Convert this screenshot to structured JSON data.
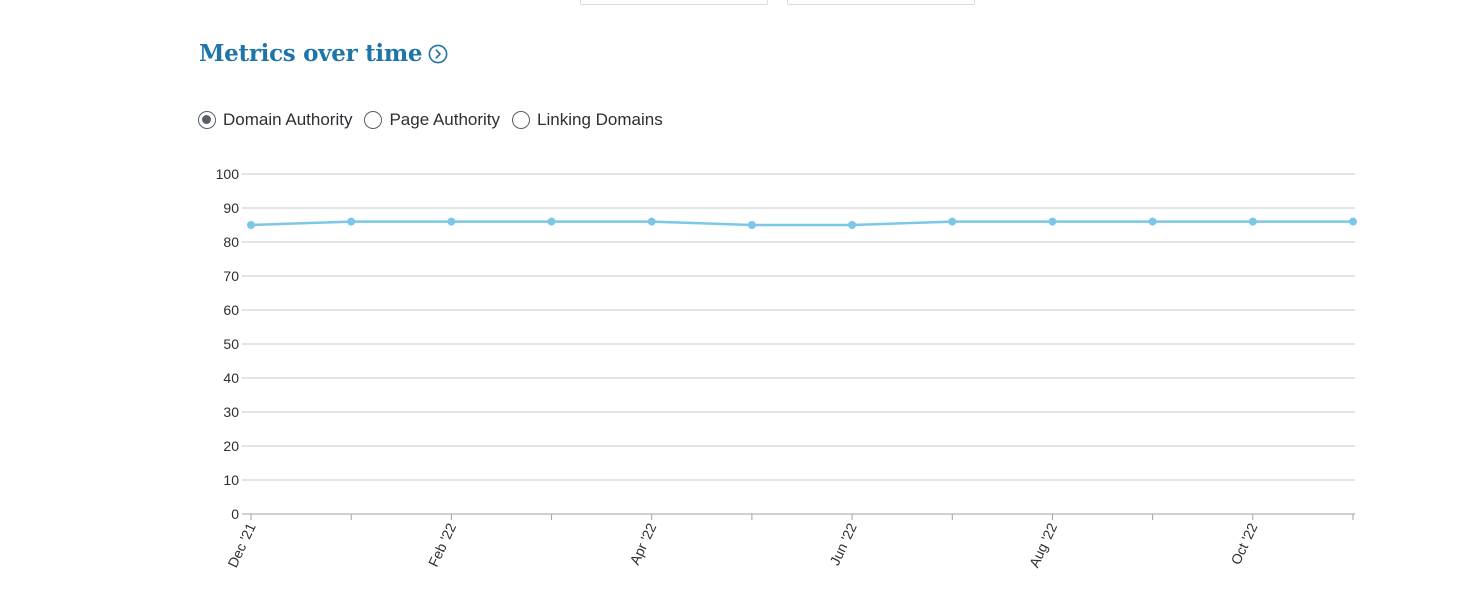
{
  "section": {
    "title": "Metrics over time",
    "title_icon": "chevron-right-circle-icon"
  },
  "metric_options": [
    {
      "label": "Domain Authority",
      "checked": true
    },
    {
      "label": "Page Authority",
      "checked": false
    },
    {
      "label": "Linking Domains",
      "checked": false
    }
  ],
  "colors": {
    "title": "#1f74a8",
    "series_line": "#7cc6ea",
    "grid": "#c4c9cd"
  },
  "chart_data": {
    "type": "line",
    "title": "",
    "xlabel": "",
    "ylabel": "",
    "ylim": [
      0,
      100
    ],
    "yticks": [
      0,
      10,
      20,
      30,
      40,
      50,
      60,
      70,
      80,
      90,
      100
    ],
    "x": [
      "2021-12",
      "2022-01",
      "2022-02",
      "2022-03",
      "2022-04",
      "2022-05",
      "2022-06",
      "2022-07",
      "2022-08",
      "2022-09",
      "2022-10",
      "2022-11"
    ],
    "xtick_labels": [
      "Dec '21",
      "",
      "Feb '22",
      "",
      "Apr '22",
      "",
      "Jun '22",
      "",
      "Aug '22",
      "",
      "Oct '22",
      ""
    ],
    "series": [
      {
        "values": [
          85,
          86,
          86,
          86,
          86,
          85,
          85,
          86,
          86,
          86,
          86,
          86
        ]
      }
    ],
    "grid": true,
    "legend": "none"
  }
}
